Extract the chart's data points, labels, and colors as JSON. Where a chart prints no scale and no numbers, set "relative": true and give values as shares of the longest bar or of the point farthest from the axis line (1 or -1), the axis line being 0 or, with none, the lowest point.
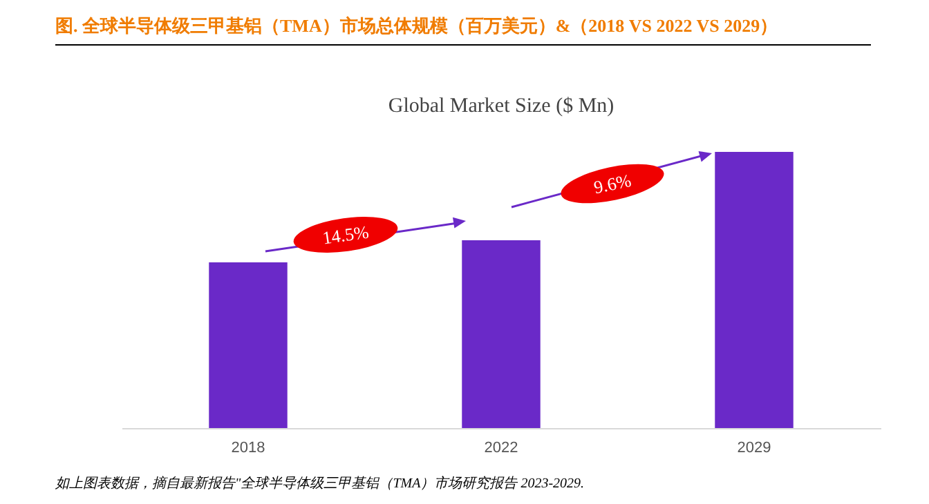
{
  "chart_data": {
    "type": "bar",
    "title": "图.   全球半导体级三甲基铝（TMA）市场总体规模（百万美元）&（2018 VS 2022 VS 2029）",
    "subtitle": "Global Market Size ($ Mn)",
    "categories": [
      "2018",
      "2022",
      "2029"
    ],
    "values": [
      0.6,
      0.68,
      1
    ],
    "color": "#6a29c8",
    "relative": true,
    "annotations": [
      "14.5%",
      "9.6%",
      "如上图表数据，摘自最新报告\"全球半导体级三甲基铝（TMA）市场研究报告 2023-2029."
    ]
  }
}
